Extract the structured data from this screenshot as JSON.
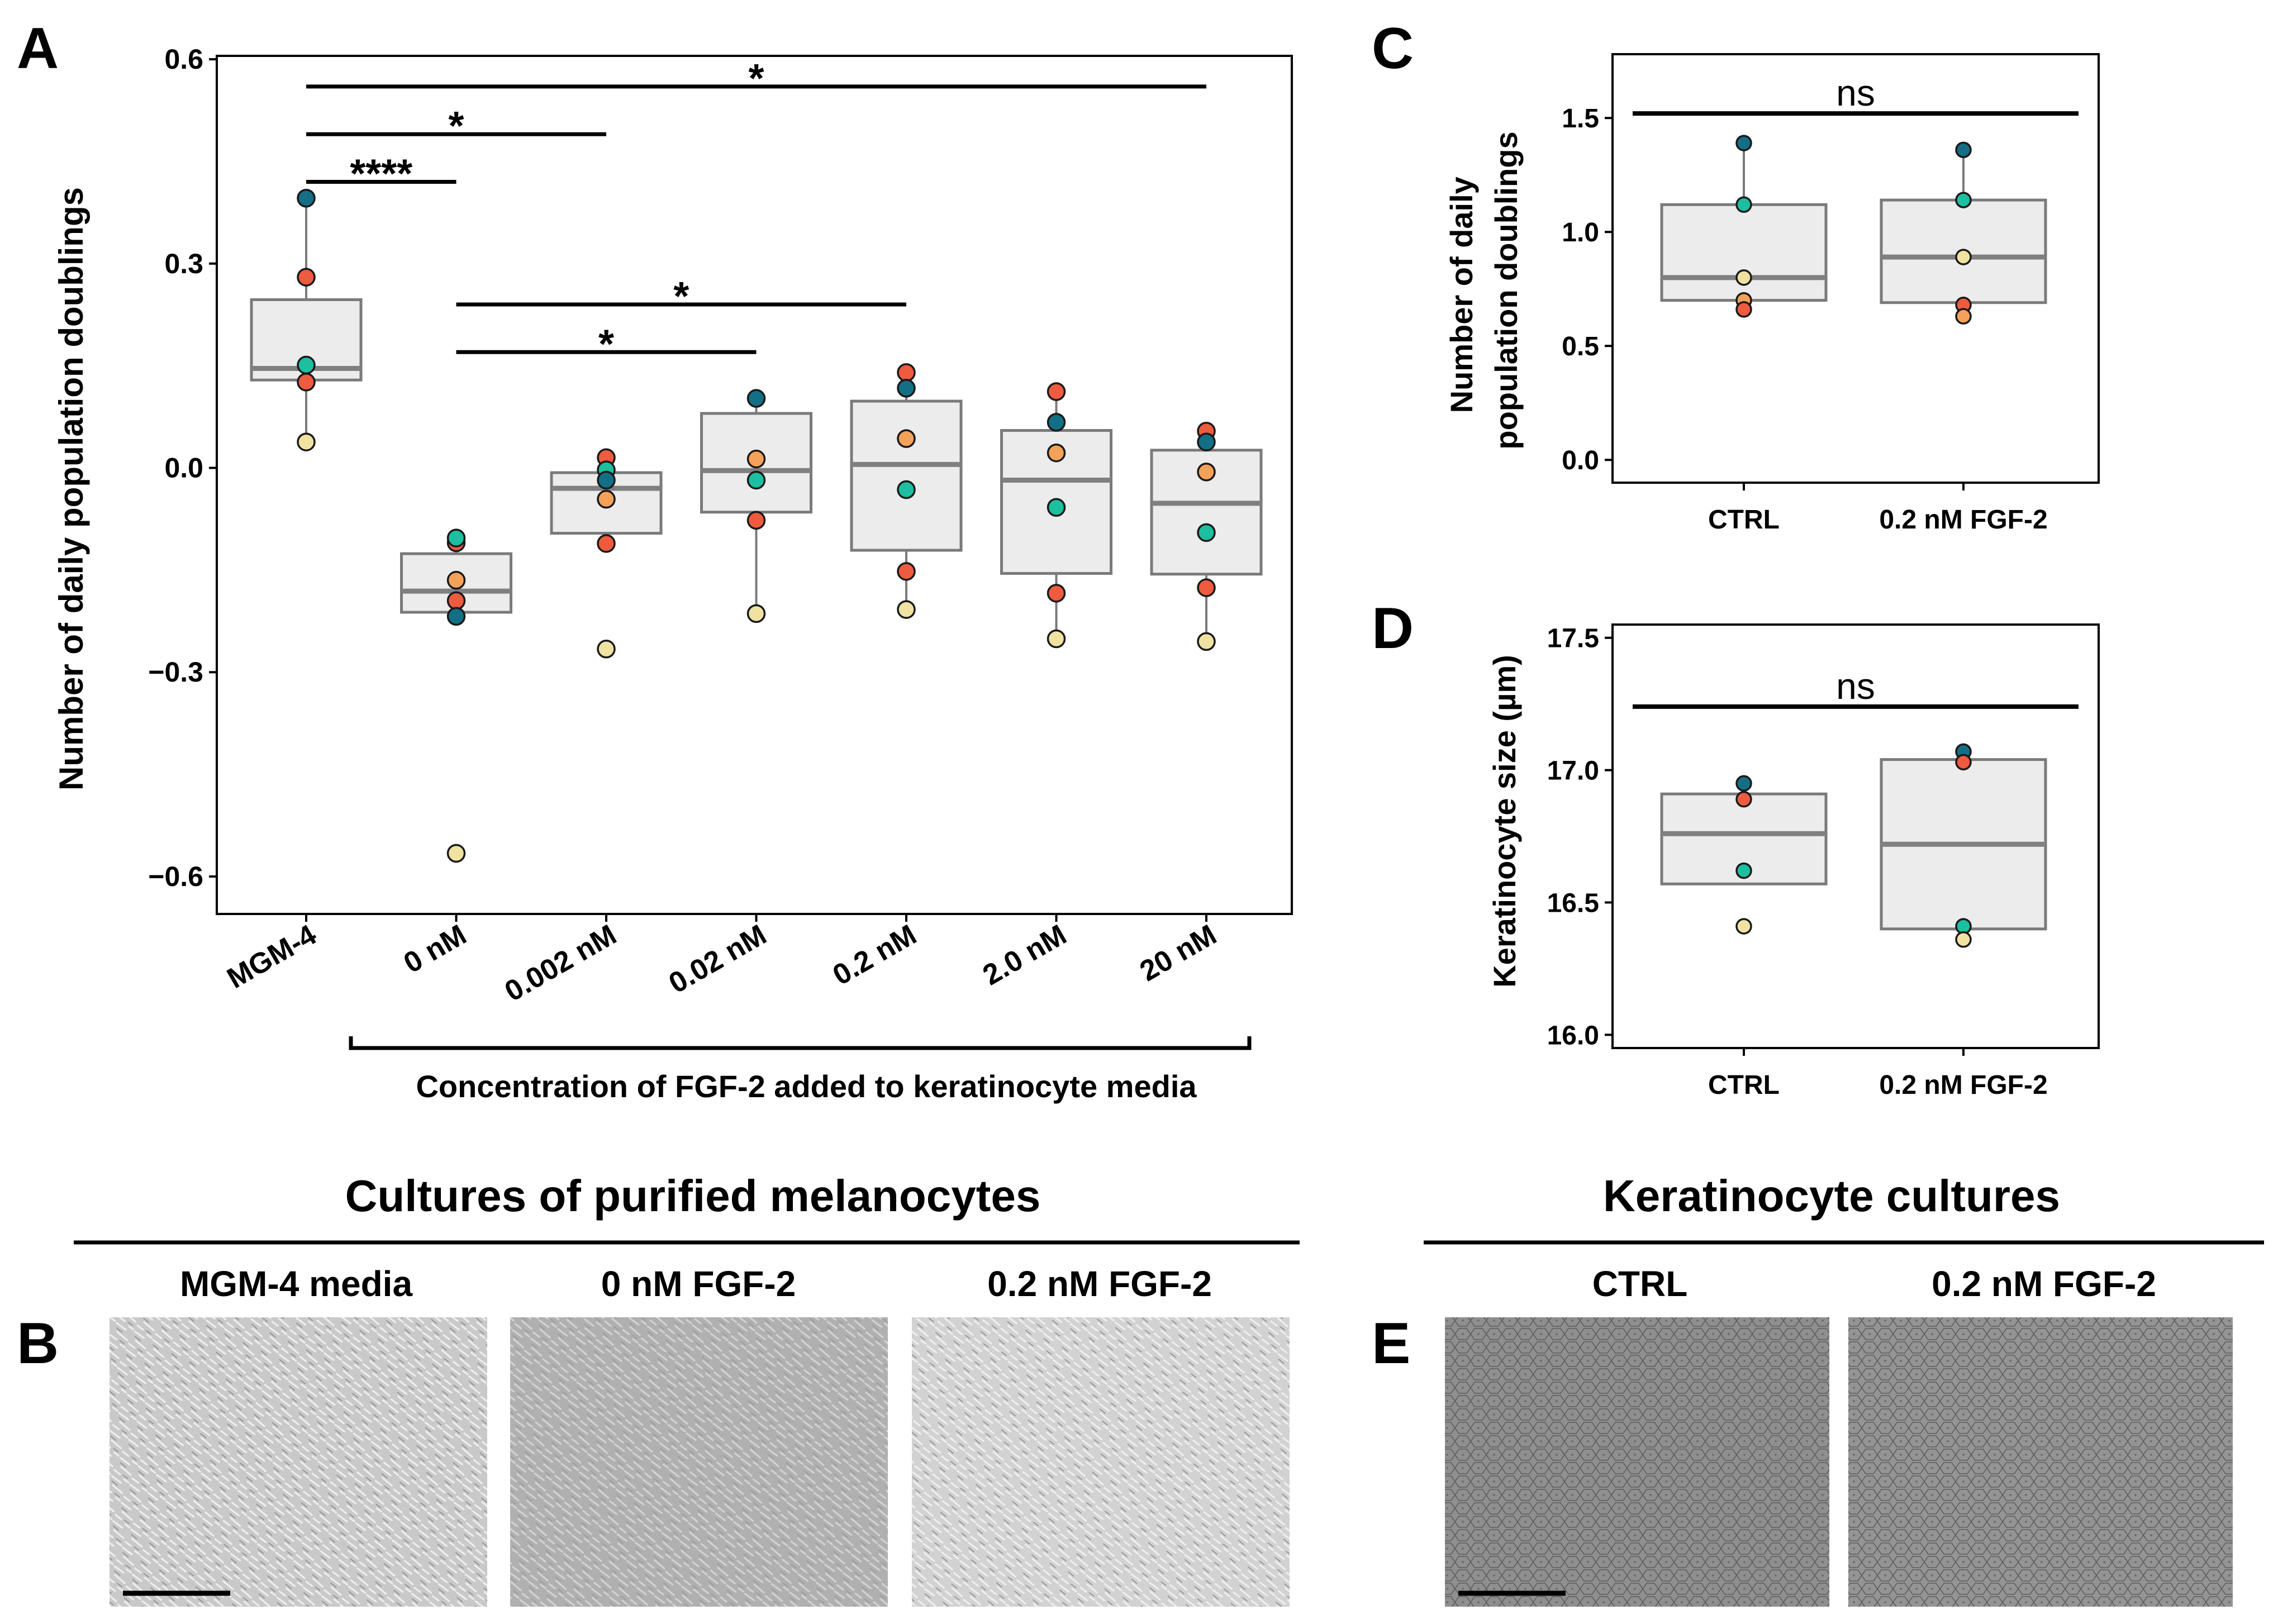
{
  "panel_letters": {
    "a": "A",
    "b": "B",
    "c": "C",
    "d": "D",
    "e": "E"
  },
  "colors": {
    "box_fill": "#ececec",
    "box_edge": "#7a7a7a",
    "median": "#808080",
    "sig_line": "#000000",
    "donor_teal_dark": "#136f86",
    "donor_teal": "#1cbf9f",
    "donor_orange": "#f4a259",
    "donor_red": "#ef5b3f",
    "donor_cream": "#f0e3a2"
  },
  "chart_data": [
    {
      "panel": "A",
      "type": "box",
      "ylabel": "Number of daily population doublings",
      "xgroup_label": "Concentration of FGF-2 added to keratinocyte media",
      "ylim": [
        -0.655,
        0.605
      ],
      "yticks": [
        -0.6,
        -0.3,
        0.0,
        0.3,
        0.6
      ],
      "ytick_labels": [
        "−0.6",
        "−0.3",
        "0.0",
        "0.3",
        "0.6"
      ],
      "categories": [
        "MGM-4",
        "0 nM",
        "0.002 nM",
        "0.02 nM",
        "0.2 nM",
        "2.0 nM",
        "20 nM"
      ],
      "boxes": [
        {
          "q1": 0.129,
          "median": 0.146,
          "q3": 0.247,
          "whisker_low": 0.038,
          "whisker_high": 0.396
        },
        {
          "q1": -0.212,
          "median": -0.181,
          "q3": -0.126,
          "whisker_low": -0.212,
          "whisker_high": -0.103
        },
        {
          "q1": -0.096,
          "median": -0.03,
          "q3": -0.007,
          "whisker_low": -0.096,
          "whisker_high": 0.015
        },
        {
          "q1": -0.065,
          "median": -0.004,
          "q3": 0.08,
          "whisker_low": -0.214,
          "whisker_high": 0.102
        },
        {
          "q1": -0.121,
          "median": 0.005,
          "q3": 0.098,
          "whisker_low": -0.208,
          "whisker_high": 0.14
        },
        {
          "q1": -0.155,
          "median": -0.018,
          "q3": 0.055,
          "whisker_low": -0.251,
          "whisker_high": 0.112
        },
        {
          "q1": -0.156,
          "median": -0.052,
          "q3": 0.026,
          "whisker_low": -0.255,
          "whisker_high": 0.054
        }
      ],
      "points": [
        [
          {
            "y": 0.396,
            "c": "donor_teal_dark"
          },
          {
            "y": 0.28,
            "c": "donor_red"
          },
          {
            "y": 0.151,
            "c": "donor_teal"
          },
          {
            "y": 0.126,
            "c": "donor_red"
          },
          {
            "y": 0.038,
            "c": "donor_cream"
          }
        ],
        [
          {
            "y": -0.11,
            "c": "donor_red"
          },
          {
            "y": -0.103,
            "c": "donor_teal"
          },
          {
            "y": -0.165,
            "c": "donor_orange"
          },
          {
            "y": -0.195,
            "c": "donor_red"
          },
          {
            "y": -0.218,
            "c": "donor_teal_dark"
          },
          {
            "y": -0.566,
            "c": "donor_cream"
          }
        ],
        [
          {
            "y": 0.015,
            "c": "donor_red"
          },
          {
            "y": -0.003,
            "c": "donor_teal"
          },
          {
            "y": -0.018,
            "c": "donor_teal_dark"
          },
          {
            "y": -0.046,
            "c": "donor_orange"
          },
          {
            "y": -0.111,
            "c": "donor_red"
          },
          {
            "y": -0.266,
            "c": "donor_cream"
          }
        ],
        [
          {
            "y": 0.102,
            "c": "donor_teal_dark"
          },
          {
            "y": 0.013,
            "c": "donor_orange"
          },
          {
            "y": -0.018,
            "c": "donor_teal"
          },
          {
            "y": -0.077,
            "c": "donor_red"
          },
          {
            "y": -0.214,
            "c": "donor_cream"
          }
        ],
        [
          {
            "y": 0.14,
            "c": "donor_red"
          },
          {
            "y": 0.117,
            "c": "donor_teal_dark"
          },
          {
            "y": 0.043,
            "c": "donor_orange"
          },
          {
            "y": -0.032,
            "c": "donor_teal"
          },
          {
            "y": -0.152,
            "c": "donor_red"
          },
          {
            "y": -0.208,
            "c": "donor_cream"
          }
        ],
        [
          {
            "y": 0.112,
            "c": "donor_red"
          },
          {
            "y": 0.067,
            "c": "donor_teal_dark"
          },
          {
            "y": 0.022,
            "c": "donor_orange"
          },
          {
            "y": -0.058,
            "c": "donor_teal"
          },
          {
            "y": -0.184,
            "c": "donor_red"
          },
          {
            "y": -0.251,
            "c": "donor_cream"
          }
        ],
        [
          {
            "y": 0.054,
            "c": "donor_red"
          },
          {
            "y": 0.038,
            "c": "donor_teal_dark"
          },
          {
            "y": -0.006,
            "c": "donor_orange"
          },
          {
            "y": -0.095,
            "c": "donor_teal"
          },
          {
            "y": -0.176,
            "c": "donor_red"
          },
          {
            "y": -0.255,
            "c": "donor_cream"
          }
        ]
      ],
      "significance": [
        {
          "from": 0,
          "to": 6,
          "label": "*",
          "y": 0.56
        },
        {
          "from": 0,
          "to": 2,
          "label": "*",
          "y": 0.49
        },
        {
          "from": 0,
          "to": 1,
          "label": "****",
          "y": 0.42
        },
        {
          "from": 1,
          "to": 4,
          "label": "*",
          "y": 0.24
        },
        {
          "from": 1,
          "to": 3,
          "label": "*",
          "y": 0.17
        }
      ]
    },
    {
      "panel": "C",
      "type": "box",
      "ylabel": "Number of daily population doublings",
      "ylim": [
        -0.1,
        1.78
      ],
      "yticks": [
        0.0,
        0.5,
        1.0,
        1.5
      ],
      "ytick_labels": [
        "0.0",
        "0.5",
        "1.0",
        "1.5"
      ],
      "categories": [
        "CTRL",
        "0.2 nM FGF-2"
      ],
      "boxes": [
        {
          "q1": 0.7,
          "median": 0.8,
          "q3": 1.12,
          "whisker_low": 0.66,
          "whisker_high": 1.39
        },
        {
          "q1": 0.69,
          "median": 0.89,
          "q3": 1.14,
          "whisker_low": 0.63,
          "whisker_high": 1.36
        }
      ],
      "points": [
        [
          {
            "y": 1.39,
            "c": "donor_teal_dark"
          },
          {
            "y": 1.12,
            "c": "donor_teal"
          },
          {
            "y": 0.8,
            "c": "donor_cream"
          },
          {
            "y": 0.7,
            "c": "donor_orange"
          },
          {
            "y": 0.66,
            "c": "donor_red"
          }
        ],
        [
          {
            "y": 1.36,
            "c": "donor_teal_dark"
          },
          {
            "y": 1.14,
            "c": "donor_teal"
          },
          {
            "y": 0.89,
            "c": "donor_cream"
          },
          {
            "y": 0.68,
            "c": "donor_red"
          },
          {
            "y": 0.63,
            "c": "donor_orange"
          }
        ]
      ],
      "significance": [
        {
          "from": 0,
          "to": 1,
          "label": "ns",
          "y": 1.52
        }
      ]
    },
    {
      "panel": "D",
      "type": "box",
      "ylabel": "Keratinocyte size (µm)",
      "ylim": [
        15.95,
        17.55
      ],
      "yticks": [
        16.0,
        16.5,
        17.0,
        17.5
      ],
      "ytick_labels": [
        "16.0",
        "16.5",
        "17.0",
        "17.5"
      ],
      "categories": [
        "CTRL",
        "0.2 nM FGF-2"
      ],
      "boxes": [
        {
          "q1": 16.57,
          "median": 16.76,
          "q3": 16.91,
          "whisker_low": 16.57,
          "whisker_high": 16.91
        },
        {
          "q1": 16.4,
          "median": 16.72,
          "q3": 17.04,
          "whisker_low": 16.4,
          "whisker_high": 17.04
        }
      ],
      "points": [
        [
          {
            "y": 16.95,
            "c": "donor_teal_dark"
          },
          {
            "y": 16.89,
            "c": "donor_red"
          },
          {
            "y": 16.62,
            "c": "donor_teal"
          },
          {
            "y": 16.41,
            "c": "donor_cream"
          }
        ],
        [
          {
            "y": 17.07,
            "c": "donor_teal_dark"
          },
          {
            "y": 17.03,
            "c": "donor_red"
          },
          {
            "y": 16.41,
            "c": "donor_teal"
          },
          {
            "y": 16.36,
            "c": "donor_cream"
          }
        ]
      ],
      "significance": [
        {
          "from": 0,
          "to": 1,
          "label": "ns",
          "y": 17.24
        }
      ]
    }
  ],
  "panel_b": {
    "title": "Cultures of purified melanocytes",
    "images": [
      {
        "label": "MGM-4 media",
        "tone": "#c9c9c9"
      },
      {
        "label": "0 nM FGF-2",
        "tone": "#b0b0b0"
      },
      {
        "label": "0.2 nM FGF-2",
        "tone": "#d2d2d2"
      }
    ]
  },
  "panel_e": {
    "title": "Keratinocyte cultures",
    "images": [
      {
        "label": "CTRL",
        "tone": "#8f8f8f"
      },
      {
        "label": "0.2 nM FGF-2",
        "tone": "#949494"
      }
    ]
  }
}
